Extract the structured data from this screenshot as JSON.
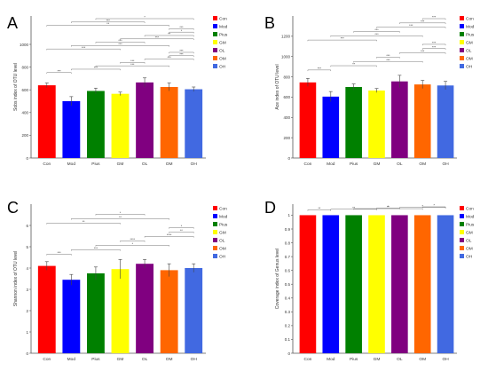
{
  "figure": {
    "groups": [
      "Con",
      "Mod",
      "Pius",
      "GM",
      "OL",
      "OM",
      "OH"
    ],
    "colors": [
      "#ff0000",
      "#0000ff",
      "#008000",
      "#ffff00",
      "#800080",
      "#ff6600",
      "#4169e1"
    ]
  },
  "chart_data": [
    {
      "panel": "A",
      "type": "bar",
      "ylabel": "Sobs index of OTU level",
      "categories": [
        "Con",
        "Mod",
        "Pius",
        "GM",
        "OL",
        "OM",
        "OH"
      ],
      "values": [
        640,
        500,
        590,
        565,
        665,
        625,
        605
      ],
      "errors": [
        20,
        40,
        25,
        15,
        40,
        35,
        20
      ],
      "ylim": [
        0,
        1250
      ],
      "yticks": [
        0,
        200,
        400,
        600,
        800,
        1000
      ],
      "legend": [
        "Con",
        "Mod",
        "Pius",
        "GM",
        "OL",
        "OM",
        "OH"
      ],
      "sig_labels": [
        "***",
        "***",
        "***",
        "***",
        "***",
        "***",
        "***",
        "***",
        "***",
        "***",
        "***",
        "**",
        "*",
        "***",
        "**",
        "***",
        "*"
      ]
    },
    {
      "panel": "B",
      "type": "bar",
      "ylabel": "Ace index of OTU level",
      "categories": [
        "Con",
        "Mod",
        "Pius",
        "GM",
        "OL",
        "OM",
        "OH"
      ],
      "values": [
        745,
        605,
        700,
        665,
        755,
        725,
        715
      ],
      "errors": [
        40,
        50,
        30,
        20,
        60,
        40,
        40
      ],
      "ylim": [
        0,
        1400
      ],
      "yticks": [
        0,
        200,
        400,
        600,
        800,
        1000,
        1200
      ],
      "legend": [
        "Con",
        "Mod",
        "Pius",
        "GM",
        "OL",
        "OM",
        "OH"
      ],
      "sig_labels": [
        "***",
        "**",
        "***",
        "***",
        "***",
        "***",
        "***",
        "***",
        "***",
        "***",
        "***",
        "***",
        "***"
      ]
    },
    {
      "panel": "C",
      "type": "bar",
      "ylabel": "Shannon index of OTU level",
      "categories": [
        "Con",
        "Mod",
        "Pius",
        "GM",
        "OL",
        "OM",
        "OH"
      ],
      "values": [
        4.1,
        3.45,
        3.75,
        3.95,
        4.2,
        3.9,
        4.0
      ],
      "errors": [
        0.2,
        0.25,
        0.3,
        0.45,
        0.2,
        0.3,
        0.2
      ],
      "ylim": [
        0,
        7
      ],
      "yticks": [
        0,
        1,
        2,
        3,
        4,
        5,
        6
      ],
      "legend": [
        "Con",
        "Mod",
        "Pius",
        "GM",
        "OL",
        "OM",
        "OH"
      ],
      "sig_labels": [
        "***",
        "***",
        "*",
        "****",
        "****",
        "**",
        "*",
        "**",
        "**",
        "*"
      ]
    },
    {
      "panel": "D",
      "type": "bar",
      "ylabel": "Coverage index of Genus level",
      "categories": [
        "Con",
        "Mod",
        "Pius",
        "GM",
        "OL",
        "OM",
        "OH"
      ],
      "values": [
        1,
        1,
        1,
        1,
        1,
        1,
        1
      ],
      "errors": [
        0,
        0,
        0,
        0,
        0,
        0,
        0
      ],
      "ylim": [
        0,
        1.08
      ],
      "yticks": [
        0,
        0.1,
        0.2,
        0.3,
        0.4,
        0.5,
        0.6,
        0.7,
        0.8,
        0.9,
        1
      ],
      "legend": [
        "Con",
        "Mod",
        "Pius",
        "GM",
        "OL",
        "OM",
        "OH"
      ],
      "sig_labels": [
        "**",
        "**",
        "**",
        "*",
        "*",
        "*"
      ]
    }
  ]
}
